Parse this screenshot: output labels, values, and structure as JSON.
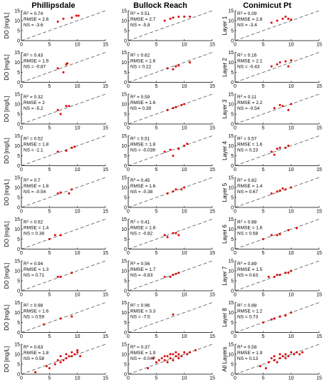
{
  "columns": [
    "Phillipsdale",
    "Bullock Reach",
    "Conimicut Pt"
  ],
  "row_labels_left": [
    "DO [mg/L]",
    "DO [mg/L]",
    "DO [mg/L]",
    "DO [mg/L]",
    "DO [mg/L]",
    "DO [mg/L]",
    "DO [mg/L]",
    "DO [mg/L]",
    "DO [mg/L]"
  ],
  "row_labels_right": [
    "Layer 1",
    "Layer 2",
    "Layer 3",
    "Layer 4",
    "Layer 5",
    "Layer 6",
    "Layer 7",
    "Layer 8",
    "All Layers"
  ],
  "axis_ticks": [
    "0",
    "5",
    "10",
    "15"
  ],
  "stats": [
    [
      [
        "0.74",
        "2.6",
        "-3.6"
      ],
      [
        "0.51",
        "2.7",
        "-5.8"
      ],
      [
        "0.09",
        "2.8",
        "-3.4"
      ]
    ],
    [
      [
        "0.43",
        "1.9",
        "-0.87"
      ],
      [
        "0.62",
        "1.6",
        "0.22"
      ],
      [
        "0.16",
        "2.1",
        "-0.43"
      ]
    ],
    [
      [
        "0.32",
        "2",
        "-5.2"
      ],
      [
        "0.59",
        "1.6",
        "0.39"
      ],
      [
        "0.11",
        "2.2",
        "-0.54"
      ]
    ],
    [
      [
        "0.52",
        "1.8",
        "-1.1"
      ],
      [
        "0.51",
        "1.8",
        "-0.039"
      ],
      [
        "0.57",
        "1.6",
        "0.23"
      ]
    ],
    [
      [
        "0.7",
        "1.8",
        "-0.54"
      ],
      [
        "0.45",
        "1.6",
        "-0.38"
      ],
      [
        "0.82",
        "1.4",
        "0.67"
      ]
    ],
    [
      [
        "0.92",
        "1.4",
        "0.38"
      ],
      [
        "0.41",
        "1.8",
        "-0.82"
      ],
      [
        "0.88",
        "1.6",
        "0.58"
      ]
    ],
    [
      [
        "0.94",
        "1.3",
        "0.71"
      ],
      [
        "0.56",
        "1.7",
        "-0.83"
      ],
      [
        "0.89",
        "1.5",
        "0.63"
      ]
    ],
    [
      [
        "0.98",
        "1.6",
        "0.59"
      ],
      [
        "0.96",
        "3.3",
        "-7.5"
      ],
      [
        "0.88",
        "1.2",
        "0.73"
      ]
    ],
    [
      [
        "0.63",
        "1.8",
        "0.58"
      ],
      [
        "0.37",
        "1.9",
        "-0.047"
      ],
      [
        "0.58",
        "1.9",
        "0.13"
      ]
    ]
  ],
  "chart_data": {
    "type": "scatter",
    "layout": "9x3 small multiples",
    "xlim": [
      0,
      15
    ],
    "ylim": [
      0,
      15
    ],
    "ylabel": "DO [mg/L]",
    "reference_line": "1:1 dashed",
    "point_color": "#dd0000",
    "panels": [
      [
        {
          "x": [
            6.5,
            7.5,
            9,
            9.8,
            10.2
          ],
          "y": [
            9.5,
            11,
            11.5,
            12.5,
            12.5
          ]
        },
        {
          "x": [
            6.5,
            7.5,
            8,
            9,
            10,
            11
          ],
          "y": [
            10,
            11,
            11.5,
            12,
            12,
            12
          ]
        },
        {
          "x": [
            6.5,
            7.5,
            8.5,
            9,
            9.5,
            10
          ],
          "y": [
            9,
            10,
            11,
            12,
            11,
            10.5
          ]
        }
      ],
      [
        {
          "x": [
            6.5,
            7.5,
            8,
            8.2
          ],
          "y": [
            7,
            5,
            9,
            9.5
          ]
        },
        {
          "x": [
            7,
            8,
            8.5,
            9,
            11
          ],
          "y": [
            7,
            6.5,
            8,
            8.5,
            10
          ]
        },
        {
          "x": [
            6.5,
            7.5,
            8,
            9,
            9.5,
            10
          ],
          "y": [
            8,
            9,
            10,
            10.5,
            8,
            11
          ]
        }
      ],
      [
        {
          "x": [
            6.5,
            7,
            8,
            8.5
          ],
          "y": [
            7,
            5,
            9,
            9
          ]
        },
        {
          "x": [
            7,
            8,
            8.5,
            9.5,
            10
          ],
          "y": [
            7,
            8,
            8.5,
            9.5,
            10
          ]
        },
        {
          "x": [
            7,
            8,
            8.5,
            9.5,
            10
          ],
          "y": [
            8,
            9.5,
            9,
            7,
            10
          ]
        }
      ],
      [
        {
          "x": [
            6.5,
            8,
            9,
            9.5
          ],
          "y": [
            7,
            7.5,
            9,
            9.5
          ]
        },
        {
          "x": [
            6.5,
            7.5,
            8,
            9,
            10,
            10.5
          ],
          "y": [
            7,
            8,
            5,
            8.5,
            10,
            11
          ]
        },
        {
          "x": [
            6.5,
            7,
            7.5,
            8,
            9,
            9.5
          ],
          "y": [
            7,
            5.5,
            8.5,
            9,
            9,
            10
          ]
        }
      ],
      [
        {
          "x": [
            6.5,
            7,
            8.5,
            9
          ],
          "y": [
            7,
            7.5,
            7,
            9
          ]
        },
        {
          "x": [
            7,
            8,
            8.5,
            9.5,
            10
          ],
          "y": [
            7,
            8,
            9,
            9,
            10
          ]
        },
        {
          "x": [
            6.5,
            7.5,
            8,
            8.5,
            9,
            10
          ],
          "y": [
            7,
            8,
            8.5,
            9.5,
            9,
            10
          ]
        }
      ],
      [
        {
          "x": [
            5,
            6,
            7
          ],
          "y": [
            5,
            7,
            7
          ]
        },
        {
          "x": [
            6.5,
            7,
            8,
            8.5,
            9
          ],
          "y": [
            7,
            6,
            8,
            8,
            7
          ]
        },
        {
          "x": [
            5,
            6.5,
            7.5,
            8,
            9.5,
            11
          ],
          "y": [
            5,
            7,
            7,
            7.5,
            9.5,
            10.5
          ]
        }
      ],
      [
        {
          "x": [
            6.5,
            7,
            9
          ],
          "y": [
            7,
            7,
            9
          ]
        },
        {
          "x": [
            6.5,
            7.5,
            8,
            8.5,
            9
          ],
          "y": [
            7,
            7,
            8,
            8.5,
            9
          ]
        },
        {
          "x": [
            6,
            7,
            7.5,
            8,
            9,
            9.5,
            10
          ],
          "y": [
            7,
            7,
            8,
            8,
            9,
            9,
            10
          ]
        }
      ],
      [
        {
          "x": [
            4,
            7,
            9
          ],
          "y": [
            4,
            7,
            8
          ]
        },
        {
          "x": [
            8
          ],
          "y": [
            9
          ]
        },
        {
          "x": [
            5,
            6.5,
            7,
            8,
            9,
            10
          ],
          "y": [
            5,
            6.5,
            7,
            8,
            8.5,
            10
          ]
        }
      ],
      [
        {
          "x": [
            2.5,
            4.5,
            5,
            6,
            6.5,
            7,
            7,
            7.5,
            8,
            8,
            8.5,
            9,
            9,
            9.5,
            10,
            10,
            10.5
          ],
          "y": [
            1,
            4,
            3,
            5,
            7,
            6,
            9,
            7,
            8,
            10,
            9,
            9,
            11,
            10,
            11,
            12,
            9
          ]
        },
        {
          "x": [
            3.5,
            4.5,
            5,
            5.5,
            6,
            6.5,
            6.5,
            7,
            7,
            7.5,
            7.5,
            8,
            8,
            8.5,
            8.5,
            9,
            9,
            9.5,
            10,
            10.5,
            11,
            12
          ],
          "y": [
            3,
            8,
            6,
            7,
            8,
            7,
            9,
            6,
            9,
            8,
            10,
            7,
            10,
            9,
            11,
            8,
            10,
            9,
            11,
            10,
            11,
            12
          ]
        },
        {
          "x": [
            4.5,
            5.5,
            6,
            6.5,
            7,
            7,
            7.5,
            8,
            8,
            8.5,
            9,
            9,
            9.5,
            10,
            10.5,
            11,
            11.5,
            12
          ],
          "y": [
            4,
            3,
            6,
            8,
            7,
            9,
            6,
            8,
            10,
            9,
            8,
            10,
            9,
            11,
            10,
            11,
            10,
            11
          ]
        }
      ]
    ]
  }
}
